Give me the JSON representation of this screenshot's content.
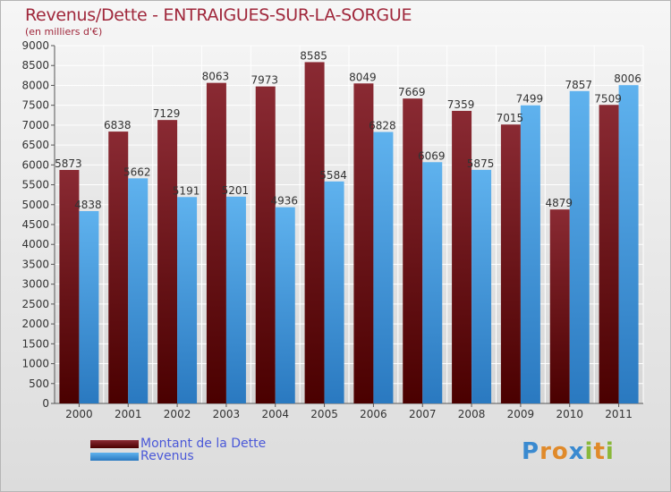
{
  "chart_data": {
    "type": "bar",
    "title": "Revenus/Dette - ENTRAIGUES-SUR-LA-SORGUE",
    "subtitle": "(en milliers d'€)",
    "categories": [
      "2000",
      "2001",
      "2002",
      "2003",
      "2004",
      "2005",
      "2006",
      "2007",
      "2008",
      "2009",
      "2010",
      "2011"
    ],
    "series": [
      {
        "name": "Montant de la Dette",
        "color": "#7a1a1f",
        "values": [
          5873,
          6838,
          7129,
          8063,
          7973,
          8585,
          8049,
          7669,
          7359,
          7015,
          4879,
          7509
        ]
      },
      {
        "name": "Revenus",
        "color": "#4c9fe0",
        "values": [
          4838,
          5662,
          5191,
          5201,
          4936,
          5584,
          6828,
          6069,
          5875,
          7499,
          7857,
          8006
        ]
      }
    ],
    "ylim": [
      0,
      9000
    ],
    "yticks": [
      0,
      500,
      1000,
      1500,
      2000,
      2500,
      3000,
      3500,
      4000,
      4500,
      5000,
      5500,
      6000,
      6500,
      7000,
      7500,
      8000,
      8500,
      9000
    ],
    "grid": true,
    "legend_position": "bottom-left"
  },
  "logo": {
    "letters": [
      {
        "ch": "P",
        "color": "#3a8ad0"
      },
      {
        "ch": "r",
        "color": "#e08a2a"
      },
      {
        "ch": "o",
        "color": "#e08a2a"
      },
      {
        "ch": "x",
        "color": "#3a8ad0"
      },
      {
        "ch": "i",
        "color": "#8ab83a"
      },
      {
        "ch": "t",
        "color": "#e08a2a"
      },
      {
        "ch": "i",
        "color": "#8ab83a"
      }
    ]
  }
}
